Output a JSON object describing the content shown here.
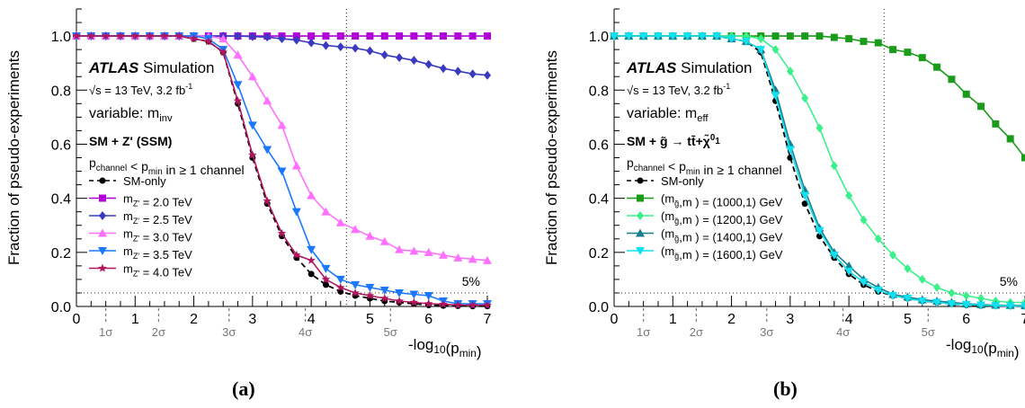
{
  "charts": [
    {
      "id": "a",
      "caption": "(a)",
      "ylabel": "Fraction of pseudo-experiments",
      "xlabel_main": "-log",
      "xlabel_sub": "10",
      "xlabel_tail": "(p",
      "xlabel_tail_sub": "min",
      "xlabel_close": ")",
      "atlas": "ATLAS",
      "simulation": "Simulation",
      "energy_line": "√s = 13 TeV, 3.2 fb",
      "energy_sup": "-1",
      "variable_text": "variable: m",
      "variable_sub": "inv",
      "model_text": "SM + Z' (SSM)",
      "pchannel_text": "p",
      "pchannel_sub": "channel",
      "pmin_text": " < p",
      "pmin_sub": "min",
      "channel_tail": " in ≥ 1 channel",
      "five_pct_label": "5%",
      "sigma_labels": [
        "1σ",
        "2σ",
        "3σ",
        "4σ",
        "5σ"
      ],
      "sigma_positions": [
        0.5,
        1.4,
        2.6,
        3.9,
        5.35
      ],
      "xticks": [
        "0",
        "1",
        "2",
        "3",
        "4",
        "5",
        "6",
        "7"
      ],
      "yticks": [
        "0.0",
        "0.2",
        "0.4",
        "0.6",
        "0.8",
        "1.0"
      ]
    },
    {
      "id": "b",
      "caption": "(b)",
      "ylabel": "Fraction of pseudo-experiments",
      "xlabel_main": "-log",
      "xlabel_sub": "10",
      "xlabel_tail": "(p",
      "xlabel_tail_sub": "min",
      "xlabel_close": ")",
      "atlas": "ATLAS",
      "simulation": "Simulation",
      "energy_line": "√s = 13 TeV, 3.2 fb",
      "energy_sup": "-1",
      "variable_text": "variable: m",
      "variable_sub": "eff",
      "model_text": "SM + g̃ → tt̄+χ̃",
      "model_sup": "0",
      "model_sub": "1",
      "pchannel_text": "p",
      "pchannel_sub": "channel",
      "pmin_text": " < p",
      "pmin_sub": "min",
      "channel_tail": " in ≥ 1 channel",
      "five_pct_label": "5%",
      "sigma_labels": [
        "1σ",
        "2σ",
        "3σ",
        "4σ",
        "5σ"
      ],
      "sigma_positions": [
        0.5,
        1.4,
        2.6,
        3.9,
        5.35
      ],
      "xticks": [
        "0",
        "1",
        "2",
        "3",
        "4",
        "5",
        "6",
        "7"
      ],
      "yticks": [
        "0.0",
        "0.2",
        "0.4",
        "0.6",
        "0.8",
        "1.0"
      ]
    }
  ],
  "chart_data": [
    {
      "type": "line",
      "xlim": [
        0,
        7
      ],
      "ylim": [
        0,
        1.1
      ],
      "x": [
        0,
        0.25,
        0.5,
        0.75,
        1,
        1.25,
        1.5,
        1.75,
        2,
        2.25,
        2.5,
        2.75,
        3,
        3.25,
        3.5,
        3.75,
        4,
        4.25,
        4.5,
        4.75,
        5,
        5.25,
        5.5,
        5.75,
        6,
        6.25,
        6.5,
        6.75,
        7
      ],
      "series": [
        {
          "name": "SM-only",
          "color": "#000000",
          "marker": "circle",
          "dashed": true,
          "values": [
            1,
            1,
            1,
            1,
            1,
            1,
            1,
            1,
            0.99,
            0.98,
            0.94,
            0.75,
            0.55,
            0.38,
            0.26,
            0.18,
            0.12,
            0.08,
            0.055,
            0.04,
            0.03,
            0.02,
            0.015,
            0.01,
            0.005,
            0.003,
            0.002,
            0.001,
            0.001
          ]
        },
        {
          "name": "m_Z' = 2.0 TeV",
          "label_main": "m",
          "label_sub": "Z'",
          "label_tail": " = 2.0 TeV",
          "color": "#b000d8",
          "marker": "square",
          "values": [
            1,
            1,
            1,
            1,
            1,
            1,
            1,
            1,
            1,
            1,
            1,
            1,
            1,
            1,
            1,
            1,
            1,
            1,
            1,
            1,
            1,
            1,
            1,
            1,
            1,
            1,
            1,
            1,
            1
          ]
        },
        {
          "name": "m_Z' = 2.5 TeV",
          "label_main": "m",
          "label_sub": "Z'",
          "label_tail": " = 2.5 TeV",
          "color": "#3a3ac0",
          "marker": "diamond",
          "values": [
            1,
            1,
            1,
            1,
            1,
            1,
            1,
            1,
            1,
            1,
            1,
            1,
            0.998,
            0.996,
            0.99,
            0.985,
            0.975,
            0.965,
            0.96,
            0.955,
            0.945,
            0.93,
            0.92,
            0.91,
            0.895,
            0.88,
            0.87,
            0.86,
            0.855
          ]
        },
        {
          "name": "m_Z' = 3.0 TeV",
          "label_main": "m",
          "label_sub": "Z'",
          "label_tail": " = 3.0 TeV",
          "color": "#ff70ff",
          "marker": "triangle-up",
          "values": [
            1,
            1,
            1,
            1,
            1,
            1,
            1,
            1,
            1,
            1,
            0.99,
            0.93,
            0.85,
            0.76,
            0.67,
            0.52,
            0.41,
            0.35,
            0.31,
            0.285,
            0.26,
            0.24,
            0.21,
            0.205,
            0.2,
            0.19,
            0.18,
            0.175,
            0.17
          ]
        },
        {
          "name": "m_Z' = 3.5 TeV",
          "label_main": "m",
          "label_sub": "Z'",
          "label_tail": " = 3.5 TeV",
          "color": "#1a78ff",
          "marker": "triangle-down",
          "values": [
            1,
            1,
            1,
            1,
            1,
            1,
            1,
            1,
            1,
            0.99,
            0.95,
            0.82,
            0.67,
            0.58,
            0.5,
            0.35,
            0.21,
            0.14,
            0.1,
            0.08,
            0.07,
            0.06,
            0.05,
            0.045,
            0.04,
            0.02,
            0.01,
            0.01,
            0.01
          ]
        },
        {
          "name": "m_Z' = 4.0 TeV",
          "label_main": "m",
          "label_sub": "Z'",
          "label_tail": " = 4.0 TeV",
          "color": "#b0155e",
          "marker": "star",
          "values": [
            1,
            1,
            1,
            1,
            1,
            1,
            1,
            1,
            0.99,
            0.98,
            0.94,
            0.76,
            0.56,
            0.39,
            0.27,
            0.19,
            0.17,
            0.1,
            0.07,
            0.05,
            0.04,
            0.03,
            0.02,
            0.015,
            0.01,
            0.008,
            0.005,
            0.005,
            0.005
          ]
        }
      ]
    },
    {
      "type": "line",
      "xlim": [
        0,
        7
      ],
      "ylim": [
        0,
        1.1
      ],
      "x": [
        0,
        0.25,
        0.5,
        0.75,
        1,
        1.25,
        1.5,
        1.75,
        2,
        2.25,
        2.5,
        2.75,
        3,
        3.25,
        3.5,
        3.75,
        4,
        4.25,
        4.5,
        4.75,
        5,
        5.25,
        5.5,
        5.75,
        6,
        6.25,
        6.5,
        6.75,
        7
      ],
      "series": [
        {
          "name": "SM-only",
          "color": "#000000",
          "marker": "circle",
          "dashed": true,
          "values": [
            1,
            1,
            1,
            1,
            1,
            1,
            1,
            1,
            0.99,
            0.98,
            0.94,
            0.76,
            0.55,
            0.38,
            0.26,
            0.18,
            0.12,
            0.08,
            0.055,
            0.04,
            0.03,
            0.02,
            0.015,
            0.01,
            0.005,
            0.003,
            0.002,
            0.001,
            0.001
          ]
        },
        {
          "name": "(1000,1) GeV",
          "label_main": "(m",
          "label_sub": "g̃",
          "label_tail": ",m  ) = (1000,1) GeV",
          "color": "#1a9c1a",
          "marker": "square",
          "values": [
            1,
            1,
            1,
            1,
            1,
            1,
            1,
            1,
            1,
            1,
            1,
            1,
            1,
            1,
            1,
            0.995,
            0.99,
            0.98,
            0.975,
            0.95,
            0.94,
            0.92,
            0.885,
            0.84,
            0.785,
            0.74,
            0.675,
            0.62,
            0.55
          ]
        },
        {
          "name": "(1200,1) GeV",
          "label_main": "(m",
          "label_sub": "g̃",
          "label_tail": ",m  ) = (1200,1) GeV",
          "color": "#3af08a",
          "marker": "diamond",
          "values": [
            1,
            1,
            1,
            1,
            1,
            1,
            1,
            1,
            1,
            1,
            0.99,
            0.95,
            0.87,
            0.77,
            0.66,
            0.52,
            0.41,
            0.32,
            0.25,
            0.19,
            0.14,
            0.1,
            0.07,
            0.05,
            0.04,
            0.03,
            0.02,
            0.015,
            0.015
          ]
        },
        {
          "name": "(1400,1) GeV",
          "label_main": "(m",
          "label_sub": "g̃",
          "label_tail": ",m  ) = (1400,1) GeV",
          "color": "#18808a",
          "marker": "triangle-up",
          "values": [
            1,
            1,
            1,
            1,
            1,
            1,
            1,
            1,
            0.99,
            0.98,
            0.95,
            0.8,
            0.6,
            0.43,
            0.29,
            0.2,
            0.15,
            0.1,
            0.07,
            0.045,
            0.035,
            0.025,
            0.02,
            0.015,
            0.01,
            0.007,
            0.005,
            0.004,
            0.003
          ]
        },
        {
          "name": "(1600,1) GeV",
          "label_main": "(m",
          "label_sub": "g̃",
          "label_tail": ",m  ) = (1600,1) GeV",
          "color": "#10e0f0",
          "marker": "triangle-down",
          "values": [
            1,
            1,
            1,
            1,
            1,
            1,
            1,
            1,
            0.99,
            0.98,
            0.95,
            0.78,
            0.58,
            0.41,
            0.28,
            0.19,
            0.13,
            0.09,
            0.06,
            0.04,
            0.03,
            0.02,
            0.015,
            0.01,
            0.007,
            0.005,
            0.003,
            0.002,
            0.002
          ]
        }
      ]
    }
  ]
}
